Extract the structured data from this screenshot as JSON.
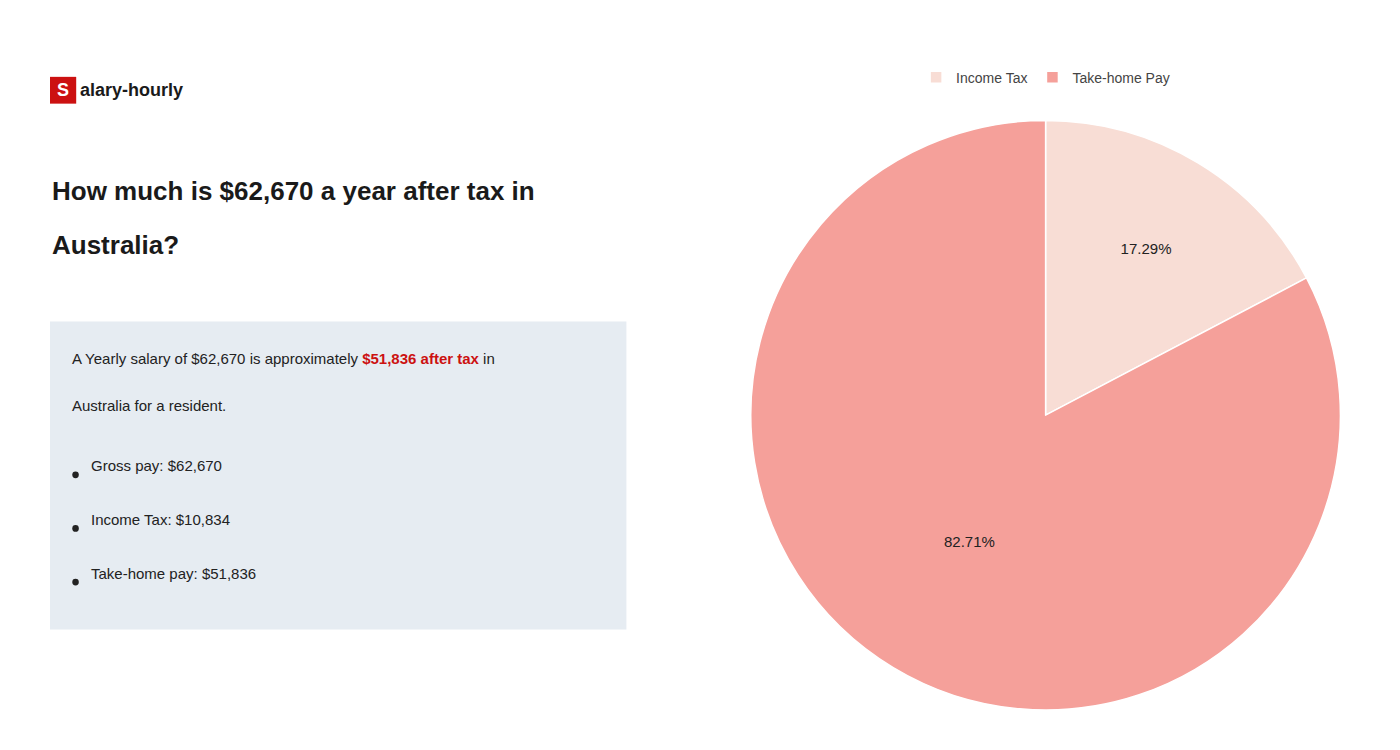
{
  "chart_data": {
    "type": "pie",
    "title": [
      "How much is $62,670 a year after tax in",
      "Australia?"
    ],
    "categories": [
      "Income Tax",
      "Take-home Pay"
    ],
    "values": [
      17.29,
      82.71
    ],
    "value_labels": [
      "17.29%",
      "82.71%"
    ],
    "colors": [
      "#f8ddd5",
      "#f5a09a"
    ],
    "data_labels": true,
    "legend": "top",
    "annotations": [
      {
        "text": "S",
        "color": "#cc1111",
        "marker": "square"
      },
      {
        "text": "alary-hourly"
      },
      {
        "text": [
          {
            "text": "A Yearly salary of $62,670 is approximately "
          },
          {
            "text": "$51,836 after tax",
            "color": "#cc1111"
          },
          {
            "text": " in"
          }
        ]
      },
      {
        "text": "Australia for a resident."
      },
      {
        "text": "Gross pay: $62,670",
        "marker": "bullet"
      },
      {
        "text": "Income Tax: $10,834",
        "marker": "bullet"
      },
      {
        "text": "Take-home pay: $51,836",
        "marker": "bullet"
      }
    ]
  }
}
